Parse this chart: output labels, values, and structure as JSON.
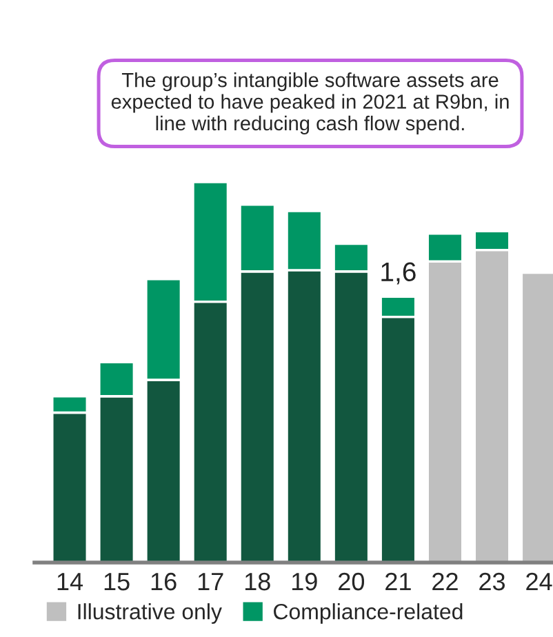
{
  "chart_data": {
    "type": "bar",
    "stacked": true,
    "categories": [
      "14",
      "15",
      "16",
      "17",
      "18",
      "19",
      "20",
      "21",
      "22",
      "23",
      "24"
    ],
    "series": [
      {
        "color": "#12573f",
        "values": [
          11.9,
          13.2,
          14.5,
          20.7,
          23.1,
          23.2,
          23.1,
          19.5,
          null,
          null,
          null
        ]
      },
      {
        "name": "Illustrative only",
        "color": "#bfbfbf",
        "values": [
          null,
          null,
          null,
          null,
          null,
          null,
          null,
          null,
          23.9,
          24.8,
          23.0
        ]
      },
      {
        "name": "Compliance-related",
        "color": "#009664",
        "values": [
          1.3,
          2.7,
          8.0,
          9.5,
          5.3,
          4.7,
          2.2,
          1.6,
          2.2,
          1.5,
          null
        ],
        "value_labels": [
          null,
          null,
          null,
          null,
          null,
          null,
          null,
          "1,6",
          null,
          null,
          null
        ]
      }
    ],
    "tick_labels": "x",
    "grid": false,
    "legend": "bottom",
    "annotations": [
      "The group’s intangible software assets are expected to have peaked in 2021 at R9bn, in line with reducing cash flow spend."
    ]
  }
}
